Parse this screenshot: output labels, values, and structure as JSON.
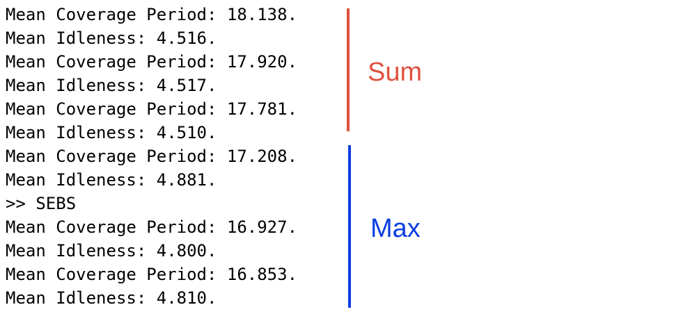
{
  "console": {
    "lines": [
      "Mean Coverage Period: 18.138.",
      "Mean Idleness: 4.516.",
      "Mean Coverage Period: 17.920.",
      "Mean Idleness: 4.517.",
      "Mean Coverage Period: 17.781.",
      "Mean Idleness: 4.510.",
      "Mean Coverage Period: 17.208.",
      "Mean Idleness: 4.881.",
      ">> SEBS",
      "Mean Coverage Period: 16.927.",
      "Mean Idleness: 4.800.",
      "Mean Coverage Period: 16.853.",
      "Mean Idleness: 4.810."
    ]
  },
  "annotations": {
    "sum": {
      "label": "Sum",
      "color": "#e0513f"
    },
    "max": {
      "label": "Max",
      "color": "#0a3ee0"
    }
  }
}
